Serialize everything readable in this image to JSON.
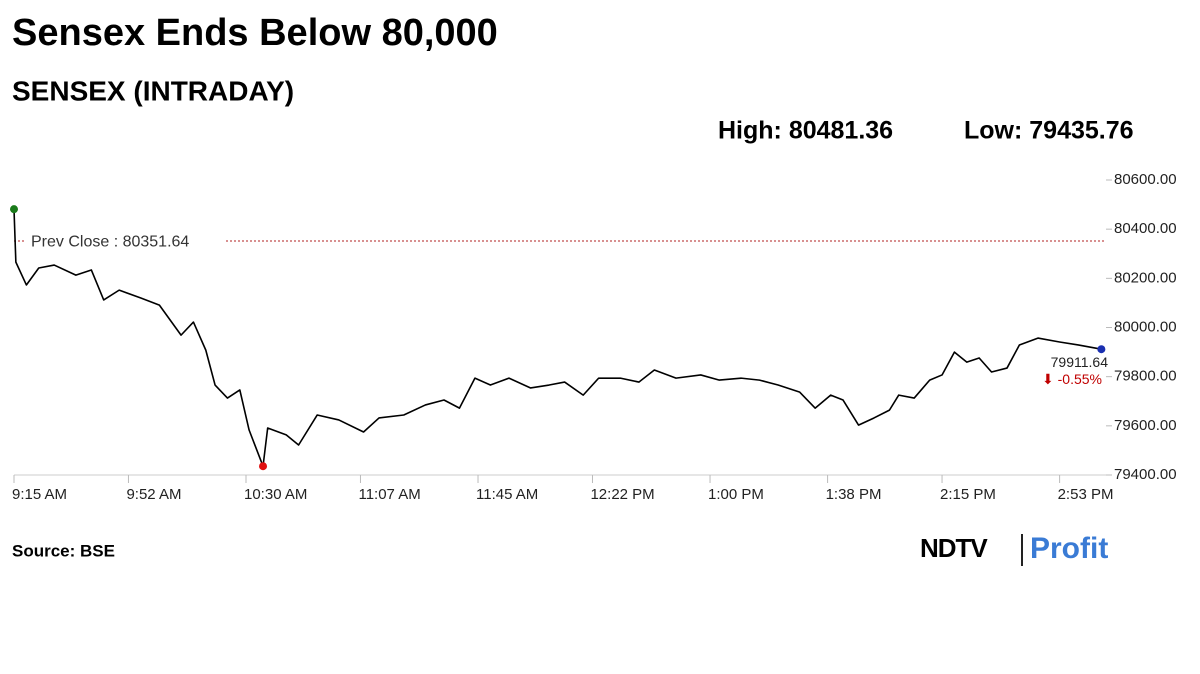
{
  "chart_data": {
    "type": "line",
    "title": "Sensex Ends Below 80,000",
    "subtitle": "SENSEX (INTRADAY)",
    "high_label": "High: 80481.36",
    "low_label": "Low: 79435.76",
    "source": "Source: BSE",
    "logo": [
      "NDTV",
      "Profit"
    ],
    "x": [
      555,
      555.6,
      559,
      563,
      568,
      575,
      580,
      584,
      589,
      596,
      602,
      609,
      613,
      617,
      620,
      624,
      628,
      631,
      635.5,
      637,
      643,
      647,
      653,
      660,
      668,
      673,
      681,
      688,
      694,
      699,
      704,
      709,
      715,
      722,
      728,
      733,
      739,
      744,
      751,
      757,
      762,
      769,
      777,
      783,
      790,
      796,
      802,
      809,
      814,
      819,
      823,
      828,
      833,
      838,
      841,
      846,
      851,
      855,
      859,
      863,
      867,
      871,
      876,
      880,
      886,
      893,
      899,
      906.5
    ],
    "series": [
      {
        "name": "SENSEX",
        "color": "#000000",
        "values": [
          80481.36,
          80266,
          80173,
          80242,
          80254,
          80213,
          80234,
          80112,
          80152,
          80120,
          80091,
          79969,
          80022,
          79908,
          79766,
          79713,
          79746,
          79583,
          79435.76,
          79591,
          79563,
          79522,
          79644,
          79624,
          79575,
          79632,
          79644,
          79685,
          79705,
          79672,
          79794,
          79766,
          79794,
          79754,
          79766,
          79778,
          79725,
          79794,
          79794,
          79778,
          79827,
          79794,
          79807,
          79786,
          79794,
          79786,
          79766,
          79737,
          79672,
          79725,
          79705,
          79603,
          79632,
          79664,
          79725,
          79713,
          79786,
          79807,
          79900,
          79859,
          79876,
          79819,
          79835,
          79929,
          79957,
          79941,
          79929,
          79911.64
        ]
      }
    ],
    "xlim": [
      555,
      908
    ],
    "xticks": [
      {
        "value": 555,
        "label": "9:15 AM"
      },
      {
        "value": 592,
        "label": "9:52 AM"
      },
      {
        "value": 630,
        "label": "10:30 AM"
      },
      {
        "value": 667,
        "label": "11:07 AM"
      },
      {
        "value": 705,
        "label": "11:45 AM"
      },
      {
        "value": 742,
        "label": "12:22 PM"
      },
      {
        "value": 780,
        "label": "1:00 PM"
      },
      {
        "value": 818,
        "label": "1:38 PM"
      },
      {
        "value": 855,
        "label": "2:15 PM"
      },
      {
        "value": 893,
        "label": "2:53 PM"
      }
    ],
    "ylim": [
      79400,
      80600
    ],
    "yticks": [
      {
        "value": 79400,
        "label": "79400.00"
      },
      {
        "value": 79600,
        "label": "79600.00"
      },
      {
        "value": 79800,
        "label": "79800.00"
      },
      {
        "value": 80000,
        "label": "80000.00"
      },
      {
        "value": 80200,
        "label": "80200.00"
      },
      {
        "value": 80400,
        "label": "80400.00"
      },
      {
        "value": 80600,
        "label": "80600.00"
      }
    ],
    "reference_line": {
      "value": 80351.64,
      "label": "Prev Close : 80351.64",
      "color": "#b22222"
    },
    "last_label": "79911.64",
    "change_label": "⬇ -0.55%",
    "change_color": "#c00000",
    "start_marker_color": "#1a7a1a",
    "low_marker_color": "#e01010",
    "end_marker_color": "#1a2fb0"
  }
}
